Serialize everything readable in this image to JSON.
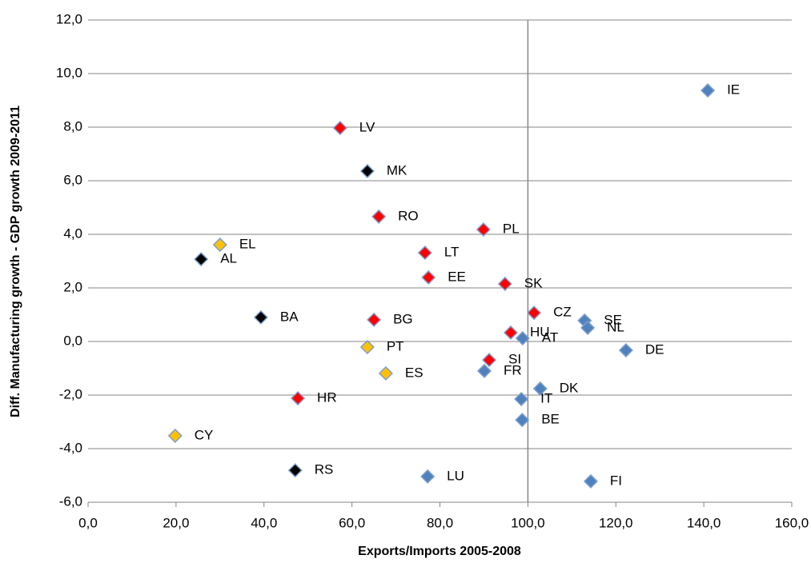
{
  "chart_data": {
    "type": "scatter",
    "x_title": "Exports/Imports 2005-2008",
    "y_title": "Diff. Manufacturing growth - GDP growth 2009-2011",
    "xlim": [
      0,
      160
    ],
    "ylim": [
      -6,
      12
    ],
    "xticks": [
      {
        "value": 0,
        "label": "0,0"
      },
      {
        "value": 20,
        "label": "20,0"
      },
      {
        "value": 40,
        "label": "40,0"
      },
      {
        "value": 60,
        "label": "60,0"
      },
      {
        "value": 80,
        "label": "80,0"
      },
      {
        "value": 100,
        "label": "100,0"
      },
      {
        "value": 120,
        "label": "120,0"
      },
      {
        "value": 140,
        "label": "140,0"
      },
      {
        "value": 160,
        "label": "160,0"
      }
    ],
    "yticks": [
      {
        "value": -6,
        "label": "-6,0"
      },
      {
        "value": -4,
        "label": "-4,0"
      },
      {
        "value": -2,
        "label": "-2,0"
      },
      {
        "value": 0,
        "label": "0,0"
      },
      {
        "value": 2,
        "label": "2,0"
      },
      {
        "value": 4,
        "label": "4,0"
      },
      {
        "value": 6,
        "label": "6,0"
      },
      {
        "value": 8,
        "label": "8,0"
      },
      {
        "value": 10,
        "label": "10,0"
      },
      {
        "value": 12,
        "label": "12,0"
      }
    ],
    "grid": true,
    "y_axis_crosses_at": 100,
    "series": [
      {
        "color": "#4f81bd",
        "labels": [
          "IE",
          "SE",
          "NL",
          "AT",
          "DE",
          "FR",
          "DK",
          "IT",
          "BE",
          "LU",
          "FI"
        ],
        "x": [
          140.9,
          112.9,
          113.6,
          98.8,
          122.3,
          90.1,
          102.8,
          98.5,
          98.7,
          77.2,
          114.3
        ],
        "values": [
          9.37,
          0.78,
          0.51,
          0.12,
          -0.33,
          -1.1,
          -1.76,
          -2.15,
          -2.93,
          -5.04,
          -5.22
        ]
      },
      {
        "color": "#ff0000",
        "labels": [
          "LV",
          "RO",
          "PL",
          "LT",
          "EE",
          "SK",
          "BG",
          "CZ",
          "HU",
          "SI",
          "HR"
        ],
        "x": [
          57.3,
          66.1,
          89.9,
          76.6,
          77.4,
          94.8,
          65.0,
          101.4,
          96.1,
          91.2,
          47.7
        ],
        "values": [
          7.97,
          4.66,
          4.18,
          3.31,
          2.39,
          2.15,
          0.81,
          1.07,
          0.33,
          -0.69,
          -2.12
        ]
      },
      {
        "color": "#000000",
        "labels": [
          "MK",
          "AL",
          "BA",
          "RS"
        ],
        "x": [
          63.5,
          25.7,
          39.3,
          47.1
        ],
        "values": [
          6.36,
          3.07,
          0.9,
          -4.81
        ]
      },
      {
        "color": "#ffc000",
        "labels": [
          "EL",
          "PT",
          "ES",
          "CY"
        ],
        "x": [
          30.0,
          63.5,
          67.7,
          19.8
        ],
        "values": [
          3.61,
          -0.21,
          -1.19,
          -3.52
        ]
      }
    ]
  }
}
